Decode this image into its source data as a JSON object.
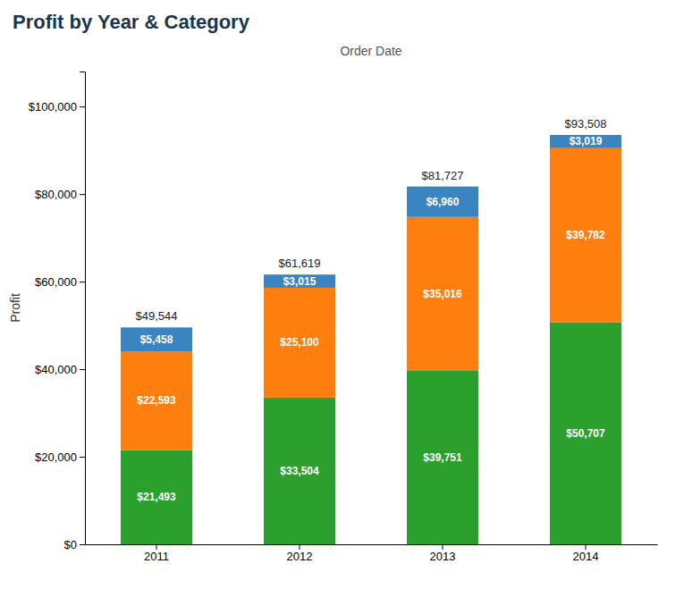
{
  "chart_data": {
    "type": "bar",
    "stacked": true,
    "title": "Profit by Year & Category",
    "xlabel": "Order Date",
    "ylabel": "Profit",
    "categories": [
      "2011",
      "2012",
      "2013",
      "2014"
    ],
    "series": [
      {
        "color": "#2ca02c",
        "values": [
          21493,
          33504,
          39751,
          50707
        ],
        "value_labels": [
          "$21,493",
          "$33,504",
          "$39,751",
          "$50,707"
        ]
      },
      {
        "color": "#ff7f0e",
        "values": [
          22593,
          25100,
          35016,
          39782
        ],
        "value_labels": [
          "$22,593",
          "$25,100",
          "$35,016",
          "$39,782"
        ]
      },
      {
        "color": "#3a85c0",
        "values": [
          5458,
          3015,
          6960,
          3019
        ],
        "value_labels": [
          "$5,458",
          "$3,015",
          "$6,960",
          "$3,019"
        ]
      }
    ],
    "totals": [
      49544,
      61619,
      81727,
      93508
    ],
    "total_labels": [
      "$49,544",
      "$61,619",
      "$81,727",
      "$93,508"
    ],
    "data_labels": true,
    "grid": false,
    "ylim": [
      0,
      108000
    ],
    "yticks": [
      {
        "value": 0,
        "label": "$0"
      },
      {
        "value": 20000,
        "label": "$20,000"
      },
      {
        "value": 40000,
        "label": "$40,000"
      },
      {
        "value": 60000,
        "label": "$60,000"
      },
      {
        "value": 80000,
        "label": "$80,000"
      },
      {
        "value": 100000,
        "label": "$100,000"
      }
    ]
  }
}
